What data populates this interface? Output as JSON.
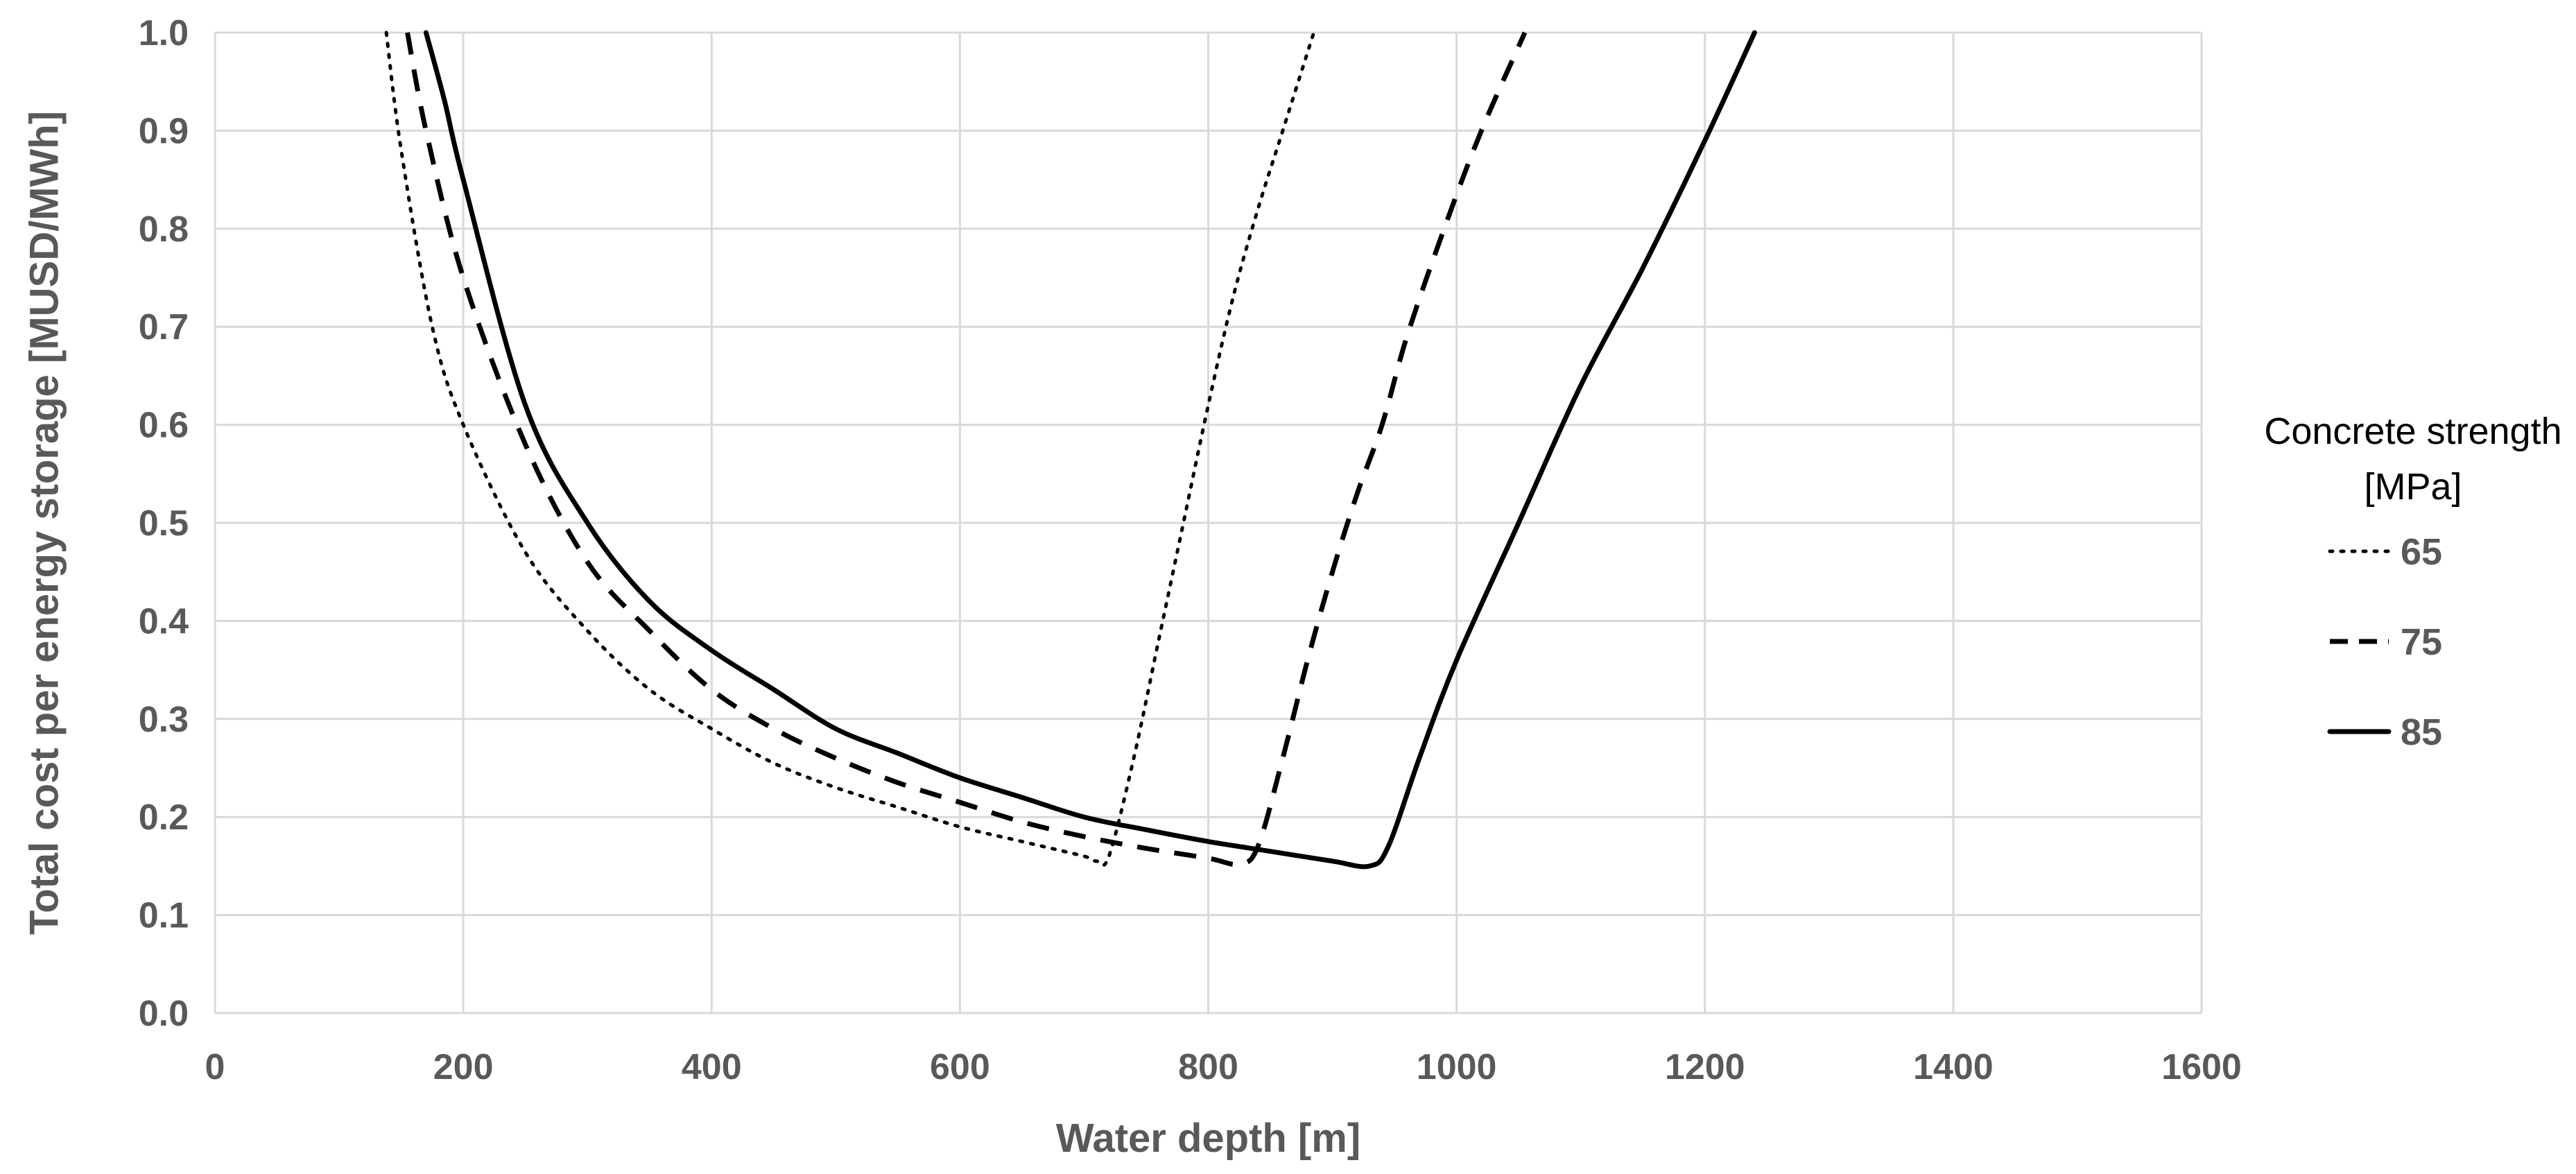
{
  "chart_data": {
    "type": "line",
    "title": "",
    "xlabel": "Water depth [m]",
    "ylabel": "Total cost  per energy storage [MUSD/MWh]",
    "xlim": [
      0,
      1600
    ],
    "ylim": [
      0,
      1.0
    ],
    "x_ticks": [
      "0",
      "200",
      "400",
      "600",
      "800",
      "1000",
      "1200",
      "1400",
      "1600"
    ],
    "y_ticks": [
      "0.0",
      "0.1",
      "0.2",
      "0.3",
      "0.4",
      "0.5",
      "0.6",
      "0.7",
      "0.8",
      "0.9",
      "1.0"
    ],
    "grid": true,
    "legend": {
      "title_line1": "Concrete strength",
      "title_line2": "[MPa]",
      "placement": "right"
    },
    "series": [
      {
        "name": "65",
        "style": "dotted",
        "color": "#000000",
        "points": [
          [
            138,
            1.0
          ],
          [
            150,
            0.88
          ],
          [
            175,
            0.7
          ],
          [
            200,
            0.6
          ],
          [
            250,
            0.47
          ],
          [
            300,
            0.39
          ],
          [
            350,
            0.33
          ],
          [
            400,
            0.29
          ],
          [
            450,
            0.255
          ],
          [
            500,
            0.23
          ],
          [
            550,
            0.21
          ],
          [
            600,
            0.19
          ],
          [
            650,
            0.175
          ],
          [
            700,
            0.16
          ],
          [
            710,
            0.155
          ],
          [
            720,
            0.16
          ],
          [
            740,
            0.26
          ],
          [
            760,
            0.38
          ],
          [
            780,
            0.5
          ],
          [
            800,
            0.62
          ],
          [
            820,
            0.73
          ],
          [
            840,
            0.82
          ],
          [
            860,
            0.9
          ],
          [
            885,
            1.0
          ]
        ]
      },
      {
        "name": "75",
        "style": "dashed",
        "color": "#000000",
        "points": [
          [
            155,
            1.0
          ],
          [
            170,
            0.9
          ],
          [
            200,
            0.75
          ],
          [
            250,
            0.58
          ],
          [
            300,
            0.46
          ],
          [
            350,
            0.39
          ],
          [
            400,
            0.33
          ],
          [
            450,
            0.29
          ],
          [
            500,
            0.26
          ],
          [
            550,
            0.235
          ],
          [
            600,
            0.215
          ],
          [
            650,
            0.195
          ],
          [
            700,
            0.18
          ],
          [
            750,
            0.168
          ],
          [
            800,
            0.158
          ],
          [
            825,
            0.152
          ],
          [
            840,
            0.17
          ],
          [
            860,
            0.26
          ],
          [
            880,
            0.36
          ],
          [
            900,
            0.45
          ],
          [
            920,
            0.53
          ],
          [
            940,
            0.6
          ],
          [
            960,
            0.69
          ],
          [
            990,
            0.8
          ],
          [
            1020,
            0.9
          ],
          [
            1055,
            1.0
          ]
        ]
      },
      {
        "name": "85",
        "style": "solid",
        "color": "#000000",
        "points": [
          [
            170,
            1.0
          ],
          [
            185,
            0.93
          ],
          [
            200,
            0.85
          ],
          [
            250,
            0.62
          ],
          [
            300,
            0.5
          ],
          [
            350,
            0.42
          ],
          [
            400,
            0.37
          ],
          [
            450,
            0.33
          ],
          [
            500,
            0.29
          ],
          [
            550,
            0.265
          ],
          [
            600,
            0.24
          ],
          [
            650,
            0.22
          ],
          [
            700,
            0.2
          ],
          [
            750,
            0.187
          ],
          [
            800,
            0.175
          ],
          [
            850,
            0.165
          ],
          [
            900,
            0.155
          ],
          [
            930,
            0.15
          ],
          [
            945,
            0.17
          ],
          [
            970,
            0.26
          ],
          [
            1000,
            0.36
          ],
          [
            1050,
            0.5
          ],
          [
            1100,
            0.64
          ],
          [
            1150,
            0.76
          ],
          [
            1200,
            0.89
          ],
          [
            1240,
            1.0
          ]
        ]
      }
    ]
  }
}
